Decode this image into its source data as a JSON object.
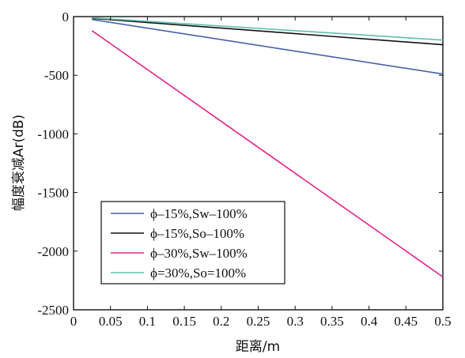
{
  "chart_data": {
    "type": "line",
    "title": "",
    "xlabel": "距离/m",
    "ylabel": "幅度衰减Ar(dB)",
    "xlim": [
      0,
      0.5
    ],
    "ylim": [
      -2500,
      0
    ],
    "xticks": [
      0,
      0.05,
      0.1,
      0.15,
      0.2,
      0.25,
      0.3,
      0.35,
      0.4,
      0.45,
      0.5
    ],
    "xtick_labels": [
      "0",
      "0.05",
      "0.1",
      "0.15",
      "0.2",
      "0.25",
      "0.3",
      "0.35",
      "0.4",
      "0.45",
      "0.5"
    ],
    "yticks": [
      0,
      -500,
      -1000,
      -1500,
      -2000,
      -2500
    ],
    "ytick_labels": [
      "0",
      "-500",
      "-1000",
      "-1500",
      "-2000",
      "-2500"
    ],
    "grid": false,
    "legend_position": "bottom-left",
    "series": [
      {
        "name": "ϕ–15%,Sw–100%",
        "color": "#4a5fa8",
        "x": [
          0.025,
          0.5
        ],
        "y": [
          -25,
          -490
        ]
      },
      {
        "name": "ϕ–15%,So–100%",
        "color": "#111111",
        "x": [
          0.025,
          0.5
        ],
        "y": [
          -15,
          -240
        ]
      },
      {
        "name": "ϕ–30%,Sw–100%",
        "color": "#e5228a",
        "x": [
          0.025,
          0.5
        ],
        "y": [
          -120,
          -2220
        ]
      },
      {
        "name": "ϕ=30%,So=100%",
        "color": "#5fbfae",
        "x": [
          0.025,
          0.5
        ],
        "y": [
          -10,
          -200
        ]
      }
    ]
  }
}
